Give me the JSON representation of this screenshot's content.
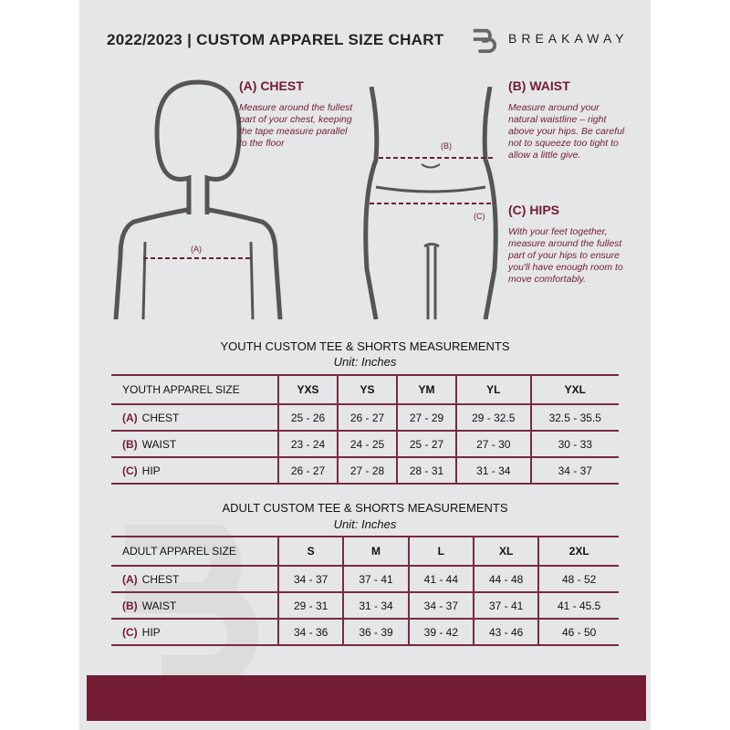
{
  "header": {
    "title": "2022/2023  |  CUSTOM APPAREL SIZE CHART",
    "brand": "BREAKAWAY",
    "logo_letter": "B"
  },
  "guides": {
    "chest": {
      "heading": "(A) CHEST",
      "text": "Measure around the fullest part of your chest, keeping the tape measure parallel to the floor",
      "marker": "(A)"
    },
    "waist": {
      "heading": "(B) WAIST",
      "text": "Measure around your natural waistline – right above your hips. Be careful not to squeeze too tight to allow a little give.",
      "marker": "(B)"
    },
    "hips": {
      "heading": "(C) HIPS",
      "text": "With your feet together, measure around the fullest part of your hips to ensure you'll have enough room to move comfortably.",
      "marker": "(C)"
    }
  },
  "colors": {
    "accent": "#731c33",
    "background": "#e5e6e8"
  },
  "youth": {
    "title": "YOUTH CUSTOM TEE & SHORTS MEASUREMENTS",
    "unit": "Unit: Inches",
    "size_label": "YOUTH APPAREL SIZE",
    "sizes": [
      "YXS",
      "YS",
      "YM",
      "YL",
      "YXL"
    ],
    "rows": [
      {
        "code": "(A)",
        "name": "CHEST",
        "values": [
          "25 - 26",
          "26 - 27",
          "27 - 29",
          "29 - 32.5",
          "32.5 - 35.5"
        ]
      },
      {
        "code": "(B)",
        "name": "WAIST",
        "values": [
          "23 - 24",
          "24 - 25",
          "25 - 27",
          "27 - 30",
          "30 - 33"
        ]
      },
      {
        "code": "(C)",
        "name": "HIP",
        "values": [
          "26 - 27",
          "27 - 28",
          "28 - 31",
          "31 - 34",
          "34 - 37"
        ]
      }
    ]
  },
  "adult": {
    "title": "ADULT CUSTOM TEE & SHORTS MEASUREMENTS",
    "unit": "Unit: Inches",
    "size_label": "ADULT APPAREL SIZE",
    "sizes": [
      "S",
      "M",
      "L",
      "XL",
      "2XL"
    ],
    "rows": [
      {
        "code": "(A)",
        "name": "CHEST",
        "values": [
          "34 - 37",
          "37 - 41",
          "41 - 44",
          "44 - 48",
          "48 - 52"
        ]
      },
      {
        "code": "(B)",
        "name": "WAIST",
        "values": [
          "29 - 31",
          "31 - 34",
          "34 - 37",
          "37 - 41",
          "41 - 45.5"
        ]
      },
      {
        "code": "(C)",
        "name": "HIP",
        "values": [
          "34 - 36",
          "36 - 39",
          "39 - 42",
          "43 - 46",
          "46 - 50"
        ]
      }
    ]
  }
}
